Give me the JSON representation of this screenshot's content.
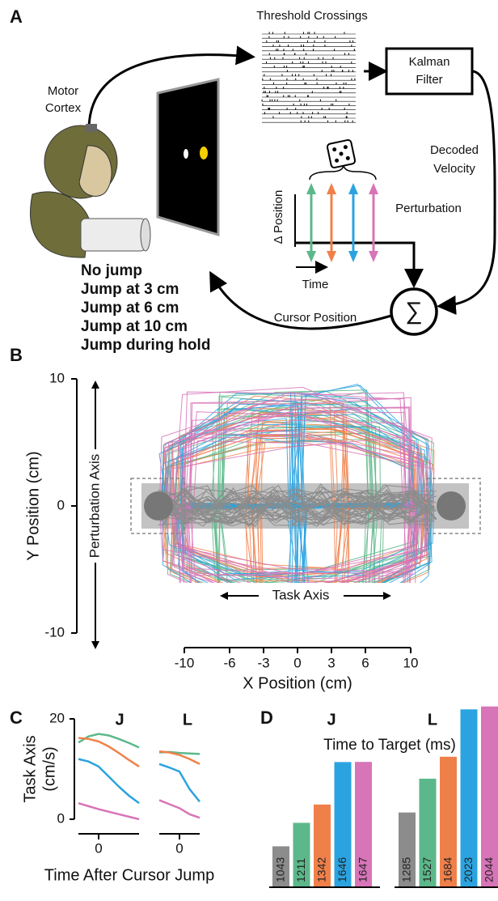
{
  "panel_labels": [
    "A",
    "B",
    "C",
    "D"
  ],
  "diagram": {
    "threshold_crossings": "Threshold Crossings",
    "kalman_filter": [
      "Kalman",
      "Filter"
    ],
    "motor_cortex": [
      "Motor",
      "Cortex"
    ],
    "decoded_velocity": [
      "Decoded",
      "Velocity"
    ],
    "perturbation": "Perturbation",
    "delta_position": "Δ Position",
    "time": "Time",
    "cursor_position": "Cursor Position",
    "sum": "∑"
  },
  "conditions": [
    {
      "name": "No jump",
      "color": "#8c8c8c"
    },
    {
      "name": "Jump at 3 cm",
      "color": "#5cb88a"
    },
    {
      "name": "Jump at 6 cm",
      "color": "#f0804a"
    },
    {
      "name": "Jump at 10 cm",
      "color": "#2ba3e0"
    },
    {
      "name": "Jump during hold",
      "color": "#d874b8"
    }
  ],
  "chart_data": [
    {
      "type": "trajectory",
      "xlabel": "X Position (cm)",
      "ylabel": "Y Position (cm)",
      "task_axis": "Task Axis",
      "perturbation_axis": "Perturbation Axis",
      "xlim": [
        -10,
        10
      ],
      "xticks": [
        -10,
        -6,
        -3,
        0,
        3,
        6,
        10
      ],
      "ylim": [
        -10,
        10
      ],
      "yticks": [
        -10,
        0,
        10
      ]
    },
    {
      "type": "line",
      "title": "J",
      "ylabel": [
        "Task Axis",
        "(cm/s)"
      ],
      "xlabel": "Time After Cursor Jump",
      "x": [
        -1,
        -0.5,
        0,
        0.5,
        1,
        1.5,
        2
      ],
      "xlim": [
        -1,
        2
      ],
      "xticks": [
        0
      ],
      "ylim": [
        0,
        20
      ],
      "yticks": [
        0,
        20
      ],
      "series": [
        {
          "name": "Jump at 3 cm",
          "color": "#5cb88a",
          "values": [
            15.3,
            16.5,
            17,
            16.7,
            16,
            15.2,
            14.3
          ]
        },
        {
          "name": "Jump at 6 cm",
          "color": "#f0804a",
          "values": [
            16.2,
            16,
            15.5,
            14.5,
            13.2,
            11.8,
            10.5
          ]
        },
        {
          "name": "Jump at 10 cm",
          "color": "#2ba3e0",
          "values": [
            12,
            11.5,
            10.5,
            8.5,
            6.5,
            4.7,
            3.2
          ]
        },
        {
          "name": "Jump during hold",
          "color": "#d874b8",
          "values": [
            3.2,
            2.6,
            2,
            1.5,
            1,
            0.5,
            0
          ]
        }
      ]
    },
    {
      "type": "line",
      "title": "L",
      "x": [
        -1,
        -0.5,
        0,
        0.5,
        1
      ],
      "xlim": [
        -1,
        1
      ],
      "xticks": [
        0
      ],
      "ylim": [
        0,
        20
      ],
      "series": [
        {
          "name": "Jump at 3 cm",
          "color": "#5cb88a",
          "values": [
            13.3,
            13.4,
            13.2,
            13.1,
            13
          ]
        },
        {
          "name": "Jump at 6 cm",
          "color": "#f0804a",
          "values": [
            13.5,
            13.3,
            12.8,
            12,
            11
          ]
        },
        {
          "name": "Jump at 10 cm",
          "color": "#2ba3e0",
          "values": [
            11,
            10.3,
            9.5,
            6,
            3.5
          ]
        },
        {
          "name": "Jump during hold",
          "color": "#d874b8",
          "values": [
            3.8,
            3,
            2.2,
            1,
            0.3
          ]
        }
      ]
    },
    {
      "type": "bar",
      "title": "J",
      "ylabel": "Time to Target (ms)",
      "ylim": [
        750,
        2100
      ],
      "values": [
        1043,
        1211,
        1342,
        1646,
        1647
      ],
      "colors": [
        "#8c8c8c",
        "#5cb88a",
        "#f0804a",
        "#2ba3e0",
        "#d874b8"
      ]
    },
    {
      "type": "bar",
      "title": "L",
      "ylim": [
        750,
        2100
      ],
      "values": [
        1285,
        1527,
        1684,
        2023,
        2044
      ],
      "colors": [
        "#8c8c8c",
        "#5cb88a",
        "#f0804a",
        "#2ba3e0",
        "#d874b8"
      ]
    }
  ]
}
